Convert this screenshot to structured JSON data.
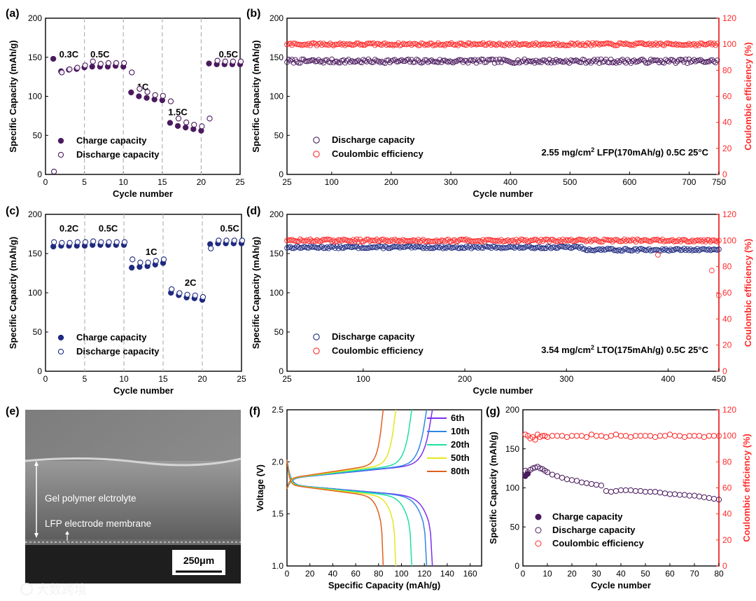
{
  "colors": {
    "purple": "#4b1a5e",
    "navy": "#1f2a80",
    "red": "#ff2a2a",
    "axis_black": "#000000",
    "dash_gray": "#b4b4b4",
    "gpe_color": "#d8d8d8",
    "membrane": "#7a7a7a",
    "current_collector": "#1d1d1d"
  },
  "panels": {
    "a": {
      "label": "(a)",
      "chart_data": {
        "type": "scatter",
        "xlabel": "Cycle number",
        "ylabel": "Specific Capacity (mAh/g)",
        "xlim": [
          0,
          25
        ],
        "ylim": [
          0,
          200
        ],
        "xticks": [
          "0",
          "5",
          "10",
          "15",
          "20",
          "25"
        ],
        "yticks": [
          "0",
          "50",
          "100",
          "150",
          "200"
        ],
        "rate_boundaries": [
          5,
          10,
          15,
          20
        ],
        "rate_labels": [
          {
            "text": "0.3C",
            "x": 3.0,
            "y": 150
          },
          {
            "text": "0.5C",
            "x": 7.0,
            "y": 150
          },
          {
            "text": "1C",
            "x": 12.5,
            "y": 108
          },
          {
            "text": "1.5C",
            "x": 17.0,
            "y": 76
          },
          {
            "text": "0.5C",
            "x": 23.5,
            "y": 150
          }
        ],
        "series": [
          {
            "name": "Charge capacity",
            "x": [
              1,
              2,
              3,
              4,
              5,
              6,
              7,
              8,
              9,
              10,
              11,
              12,
              13,
              14,
              15,
              16,
              17,
              18,
              19,
              20,
              21,
              22,
              23,
              24,
              25
            ],
            "y": [
              148,
              132,
              134,
              135,
              137,
              138,
              138,
              138,
              139,
              138,
              105,
              100,
              98,
              96,
              95,
              66,
              62,
              60,
              58,
              56,
              142,
              141,
              141,
              141,
              141
            ]
          },
          {
            "name": "Discharge capacity",
            "x": [
              1,
              2,
              3,
              4,
              5,
              6,
              7,
              8,
              9,
              10,
              11,
              12,
              13,
              14,
              15,
              16,
              17,
              18,
              19,
              20,
              21,
              22,
              23,
              24,
              25
            ],
            "y": [
              0,
              127,
              131,
              133,
              136,
              141,
              138,
              139,
              139,
              139,
              127,
              106,
              102,
              98,
              97,
              90,
              68,
              63,
              60,
              58,
              68,
              142,
              141,
              141,
              141
            ]
          }
        ]
      }
    },
    "b": {
      "label": "(b)",
      "chart_data": {
        "type": "scatter",
        "xlabel": "Cycle number",
        "ylabel": "Specific Capacity (mAh/g)",
        "y2label": "Coulombic efficiency (%)",
        "xlim": [
          25,
          750
        ],
        "ylim": [
          0,
          200
        ],
        "y2lim": [
          0,
          120
        ],
        "xtick_values": [
          25,
          100,
          200,
          300,
          400,
          500,
          600,
          700,
          750
        ],
        "xticks": [
          "25",
          "100",
          "200",
          "300",
          "400",
          "500",
          "600",
          "700",
          "750"
        ],
        "yticks": [
          "0",
          "50",
          "100",
          "150",
          "200"
        ],
        "y2ticks": [
          "0",
          "20",
          "40",
          "60",
          "80",
          "100",
          "120"
        ],
        "annotation": {
          "pre": "2.55 mg/cm",
          "sup": "2",
          "post": " LFP(170mAh/g) 0.5C 25°C"
        },
        "series": [
          {
            "name": "Discharge capacity",
            "axis": "left",
            "x_range": [
              25,
              750
            ],
            "mean": 145,
            "noise": 2.5
          },
          {
            "name": "Coulombic efficiency",
            "axis": "right",
            "x_range": [
              25,
              750
            ],
            "mean": 100,
            "noise": 1.0
          }
        ]
      }
    },
    "c": {
      "label": "(c)",
      "chart_data": {
        "type": "scatter",
        "xlabel": "Cycle number",
        "ylabel": "Specific Capacity (mAh/g)",
        "xlim": [
          0,
          25
        ],
        "ylim": [
          0,
          200
        ],
        "xticks": [
          "0",
          "5",
          "10",
          "15",
          "20",
          "25"
        ],
        "yticks": [
          "0",
          "50",
          "100",
          "150",
          "200"
        ],
        "rate_boundaries": [
          5,
          10,
          15,
          20
        ],
        "rate_labels": [
          {
            "text": "0.2C",
            "x": 3.0,
            "y": 178
          },
          {
            "text": "0.5C",
            "x": 8.0,
            "y": 178
          },
          {
            "text": "1C",
            "x": 13.5,
            "y": 148
          },
          {
            "text": "2C",
            "x": 18.5,
            "y": 109
          },
          {
            "text": "0.5C",
            "x": 23.5,
            "y": 178
          }
        ],
        "series": [
          {
            "name": "Charge capacity",
            "x": [
              1,
              2,
              3,
              4,
              5,
              6,
              7,
              8,
              9,
              10,
              11,
              12,
              13,
              14,
              15,
              16,
              17,
              18,
              19,
              20,
              21,
              22,
              23,
              24,
              25
            ],
            "y": [
              159,
              160,
              160,
              160,
              160,
              161,
              161,
              161,
              161,
              161,
              132,
              133,
              134,
              136,
              138,
              100,
              97,
              94,
              93,
              91,
              162,
              163,
              163,
              163,
              163
            ]
          },
          {
            "name": "Discharge capacity",
            "x": [
              1,
              2,
              3,
              4,
              5,
              6,
              7,
              8,
              9,
              10,
              11,
              12,
              13,
              14,
              15,
              16,
              17,
              18,
              19,
              20,
              21,
              22,
              23,
              24,
              25
            ],
            "y": [
              161,
              160,
              160,
              161,
              161,
              162,
              161,
              161,
              161,
              161,
              139,
              135,
              135,
              137,
              139,
              101,
              96,
              94,
              93,
              91,
              153,
              163,
              163,
              163,
              163
            ]
          }
        ]
      }
    },
    "d": {
      "label": "(d)",
      "chart_data": {
        "type": "scatter",
        "xlabel": "Cycle number",
        "ylabel": "Specific Capacity (mAh/g)",
        "y2label": "Coulombic efficiency (%)",
        "xlim": [
          25,
          450
        ],
        "ylim": [
          0,
          200
        ],
        "y2lim": [
          0,
          120
        ],
        "xtick_values": [
          25,
          100,
          200,
          300,
          400,
          450
        ],
        "xticks": [
          "25",
          "100",
          "200",
          "300",
          "400",
          "450"
        ],
        "yticks": [
          "0",
          "50",
          "100",
          "150",
          "200"
        ],
        "y2ticks": [
          "0",
          "20",
          "40",
          "60",
          "80",
          "100",
          "120"
        ],
        "annotation": {
          "pre": "3.54 mg/cm",
          "sup": "2",
          "post": " LTO(175mAh/g) 0.5C 25°C"
        },
        "series": [
          {
            "name": "Discharge capacity",
            "axis": "left",
            "x_range": [
              25,
              450
            ],
            "mean": 158,
            "noise": 1.5,
            "late_value": 155,
            "late_from": 315
          },
          {
            "name": "Coulombic efficiency",
            "axis": "right",
            "x_range": [
              25,
              450
            ],
            "mean": 100,
            "noise": 1.0,
            "outliers": [
              {
                "x": 390,
                "y": 89
              },
              {
                "x": 443,
                "y": 77
              },
              {
                "x": 450,
                "y": 58
              }
            ]
          }
        ]
      }
    },
    "e": {
      "label": "(e)",
      "gpe_label": "Gel polymer elctrolyte",
      "membrane_label": "LFP electrode membrane",
      "scale_bar": "250μm"
    },
    "f": {
      "label": "(f)",
      "chart_data": {
        "type": "line",
        "xlabel": "Specific Capacity (mAh/g)",
        "ylabel": "Voltage (V)",
        "xlim": [
          0,
          170
        ],
        "ylim": [
          1.0,
          2.5
        ],
        "xtick_values": [
          0,
          20,
          40,
          60,
          80,
          100,
          120,
          140,
          160
        ],
        "xticks": [
          "0",
          "20",
          "40",
          "60",
          "80",
          "100",
          "120",
          "140",
          "160"
        ],
        "ytick_values": [
          1.0,
          1.5,
          2.0,
          2.5
        ],
        "yticks": [
          "1.0",
          "1.5",
          "2.0",
          "2.5"
        ],
        "legend_position": "top-right",
        "series": [
          {
            "name": "6th",
            "color": "#7b2ff2",
            "capacity": 127
          },
          {
            "name": "10th",
            "color": "#2e86e8",
            "capacity": 122
          },
          {
            "name": "20th",
            "color": "#1ee0a0",
            "capacity": 109
          },
          {
            "name": "50th",
            "color": "#e6e61e",
            "capacity": 95
          },
          {
            "name": "80th",
            "color": "#e0601e",
            "capacity": 84
          }
        ]
      }
    },
    "g": {
      "label": "(g)",
      "chart_data": {
        "type": "scatter",
        "xlabel": "Cycle number",
        "ylabel": "Specific Capacity (mAh/g)",
        "y2label": "Coulombic efficiency (%)",
        "xlim": [
          0,
          80
        ],
        "ylim": [
          0,
          200
        ],
        "y2lim": [
          0,
          120
        ],
        "xtick_values": [
          0,
          10,
          20,
          30,
          40,
          50,
          60,
          70,
          80
        ],
        "xticks": [
          "0",
          "10",
          "20",
          "30",
          "40",
          "50",
          "60",
          "70",
          "80"
        ],
        "yticks": [
          "0",
          "50",
          "100",
          "150",
          "200"
        ],
        "y2ticks": [
          "0",
          "20",
          "40",
          "60",
          "80",
          "100",
          "120"
        ],
        "series": [
          {
            "name": "Charge capacity",
            "axis": "left",
            "x": [
              1,
              2
            ],
            "y": [
              115,
              118
            ]
          },
          {
            "name": "Discharge capacity",
            "axis": "left",
            "x": [
              1,
              2,
              3,
              4,
              5,
              6,
              7,
              8,
              9,
              10,
              12,
              14,
              16,
              18,
              20,
              22,
              24,
              26,
              28,
              30,
              32,
              34,
              36,
              38,
              40,
              42,
              44,
              46,
              48,
              50,
              52,
              54,
              56,
              58,
              60,
              62,
              64,
              66,
              68,
              70,
              72,
              74,
              76,
              78,
              80
            ],
            "y": [
              122,
              120,
              123,
              125,
              126,
              127,
              125,
              124,
              122,
              120,
              117,
              115,
              113,
              111,
              110,
              109,
              107,
              106,
              105,
              104,
              103,
              96,
              95,
              96,
              97,
              97,
              97,
              96,
              96,
              95,
              95,
              95,
              94,
              93,
              92,
              92,
              91,
              91,
              90,
              90,
              89,
              88,
              87,
              86,
              85
            ]
          },
          {
            "name": "Coulombic efficiency",
            "axis": "right",
            "x": [
              1,
              2,
              3,
              4,
              5,
              6,
              7,
              8,
              9,
              10,
              12,
              14,
              16,
              18,
              20,
              22,
              24,
              26,
              28,
              30,
              32,
              34,
              36,
              38,
              40,
              42,
              44,
              46,
              48,
              50,
              52,
              54,
              56,
              58,
              60,
              62,
              64,
              66,
              68,
              70,
              72,
              74,
              76,
              78,
              80
            ],
            "y": [
              101,
              100,
              98,
              99,
              97,
              101,
              99,
              100,
              100,
              99,
              100,
              100,
              100,
              99,
              100,
              100,
              100,
              99,
              101,
              100,
              100,
              99,
              100,
              101,
              100,
              100,
              99,
              100,
              100,
              100,
              100,
              99,
              100,
              100,
              101,
              100,
              100,
              99,
              100,
              100,
              100,
              99,
              100,
              100,
              100
            ]
          }
        ]
      }
    }
  },
  "watermark": "大数跨境"
}
